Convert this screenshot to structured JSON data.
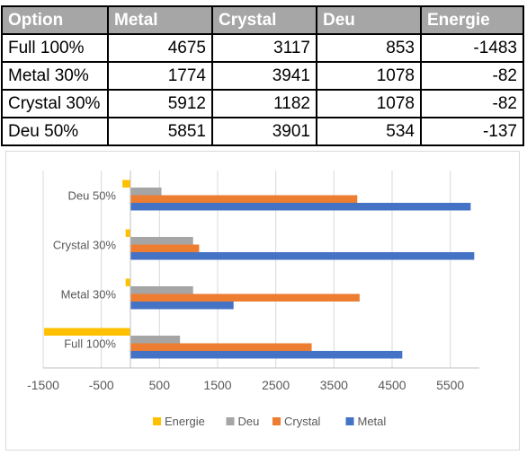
{
  "table": {
    "headers": [
      "Option",
      "Metal",
      "Crystal",
      "Deu",
      "Energie"
    ],
    "rows": [
      [
        "Full 100%",
        "4675",
        "3117",
        "853",
        "-1483"
      ],
      [
        "Metal 30%",
        "1774",
        "3941",
        "1078",
        "-82"
      ],
      [
        "Crystal 30%",
        "5912",
        "1182",
        "1078",
        "-82"
      ],
      [
        "Deu 50%",
        "5851",
        "3901",
        "534",
        "-137"
      ]
    ]
  },
  "chart_data": {
    "type": "bar",
    "orientation": "horizontal",
    "title": "",
    "xlabel": "",
    "ylabel": "",
    "categories": [
      "Full 100%",
      "Metal 30%",
      "Crystal 30%",
      "Deu 50%"
    ],
    "series": [
      {
        "name": "Metal",
        "color": "#4472c4",
        "values": [
          4675,
          1774,
          5912,
          5851
        ]
      },
      {
        "name": "Crystal",
        "color": "#ed7d31",
        "values": [
          3117,
          3941,
          1182,
          3901
        ]
      },
      {
        "name": "Deu",
        "color": "#a5a5a5",
        "values": [
          853,
          1078,
          1078,
          534
        ]
      },
      {
        "name": "Energie",
        "color": "#ffc000",
        "values": [
          -1483,
          -82,
          -82,
          -137
        ]
      }
    ],
    "xlim": [
      -1500,
      6000
    ],
    "ticks": [
      "-1500",
      "-500",
      "500",
      "1500",
      "2500",
      "3500",
      "4500",
      "5500"
    ],
    "tick_values": [
      -1500,
      -500,
      500,
      1500,
      2500,
      3500,
      4500,
      5500
    ],
    "grid": true,
    "legend_position": "bottom",
    "legend_order": [
      "Energie",
      "Deu",
      "Crystal",
      "Metal"
    ]
  }
}
